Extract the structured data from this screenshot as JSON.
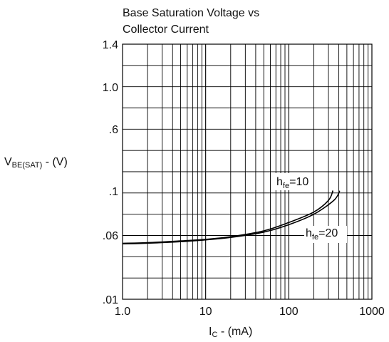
{
  "chart_data": {
    "type": "line",
    "title_lines": [
      "Base Saturation Voltage vs",
      "Collector Current"
    ],
    "xlabel": {
      "main": "I",
      "sub": "C",
      "rest": " - (mA)"
    },
    "ylabel": {
      "main": "V",
      "sub": "BE(SAT)",
      "rest": " - (V)"
    },
    "x_scale": "log",
    "xlim": [
      1,
      1000
    ],
    "y_scale": "nonlinear",
    "x_ticks": [
      1,
      10,
      100,
      1000
    ],
    "x_tick_labels": [
      "1.0",
      "10",
      "100",
      "1000"
    ],
    "y_ticks": [
      0.01,
      0.06,
      0.1,
      0.6,
      1.0,
      1.4
    ],
    "y_tick_labels": [
      ".01",
      ".06",
      ".1",
      ".6",
      "1.0",
      "1.4"
    ],
    "grid": true,
    "series": [
      {
        "name": "hfe=10",
        "label": {
          "main": "h",
          "sub": "fe",
          "rest": "=10"
        },
        "x": [
          1,
          2,
          5,
          10,
          20,
          50,
          100,
          200,
          300,
          340
        ],
        "y": [
          0.0536,
          0.0541,
          0.0555,
          0.0567,
          0.0588,
          0.0639,
          0.0714,
          0.0809,
          0.0914,
          0.1026
        ]
      },
      {
        "name": "hfe=20",
        "label": {
          "main": "h",
          "sub": "fe",
          "rest": "=20"
        },
        "x": [
          1,
          2,
          5,
          10,
          20,
          50,
          100,
          200,
          350,
          410
        ],
        "y": [
          0.0532,
          0.0537,
          0.0549,
          0.0563,
          0.0582,
          0.0627,
          0.0694,
          0.0789,
          0.0916,
          0.1012
        ]
      }
    ]
  }
}
